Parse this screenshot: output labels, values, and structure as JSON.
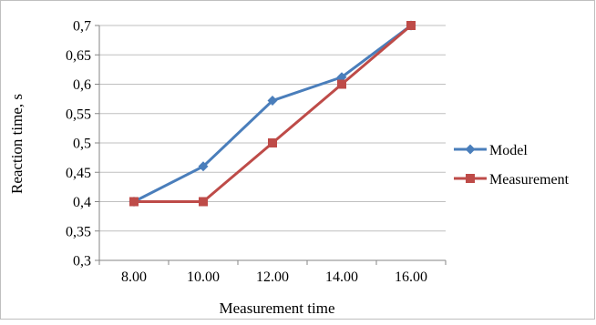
{
  "chart_data": {
    "type": "line",
    "title": "",
    "xlabel": "Measurement time",
    "ylabel": "Reaction time, s",
    "categories": [
      "8.00",
      "10.00",
      "12.00",
      "14.00",
      "16.00"
    ],
    "y_ticks": [
      "0,3",
      "0,35",
      "0,4",
      "0,45",
      "0,5",
      "0,55",
      "0,6",
      "0,65",
      "0,7"
    ],
    "ylim": [
      0.3,
      0.7
    ],
    "grid": "horizontal",
    "legend_position": "right",
    "series": [
      {
        "name": "Model",
        "color": "#4a7ebb",
        "marker": "diamond",
        "values": [
          0.4,
          0.46,
          0.572,
          0.612,
          0.7
        ]
      },
      {
        "name": "Measurement",
        "color": "#be4b48",
        "marker": "square",
        "values": [
          0.4,
          0.4,
          0.5,
          0.6,
          0.7
        ]
      }
    ]
  }
}
